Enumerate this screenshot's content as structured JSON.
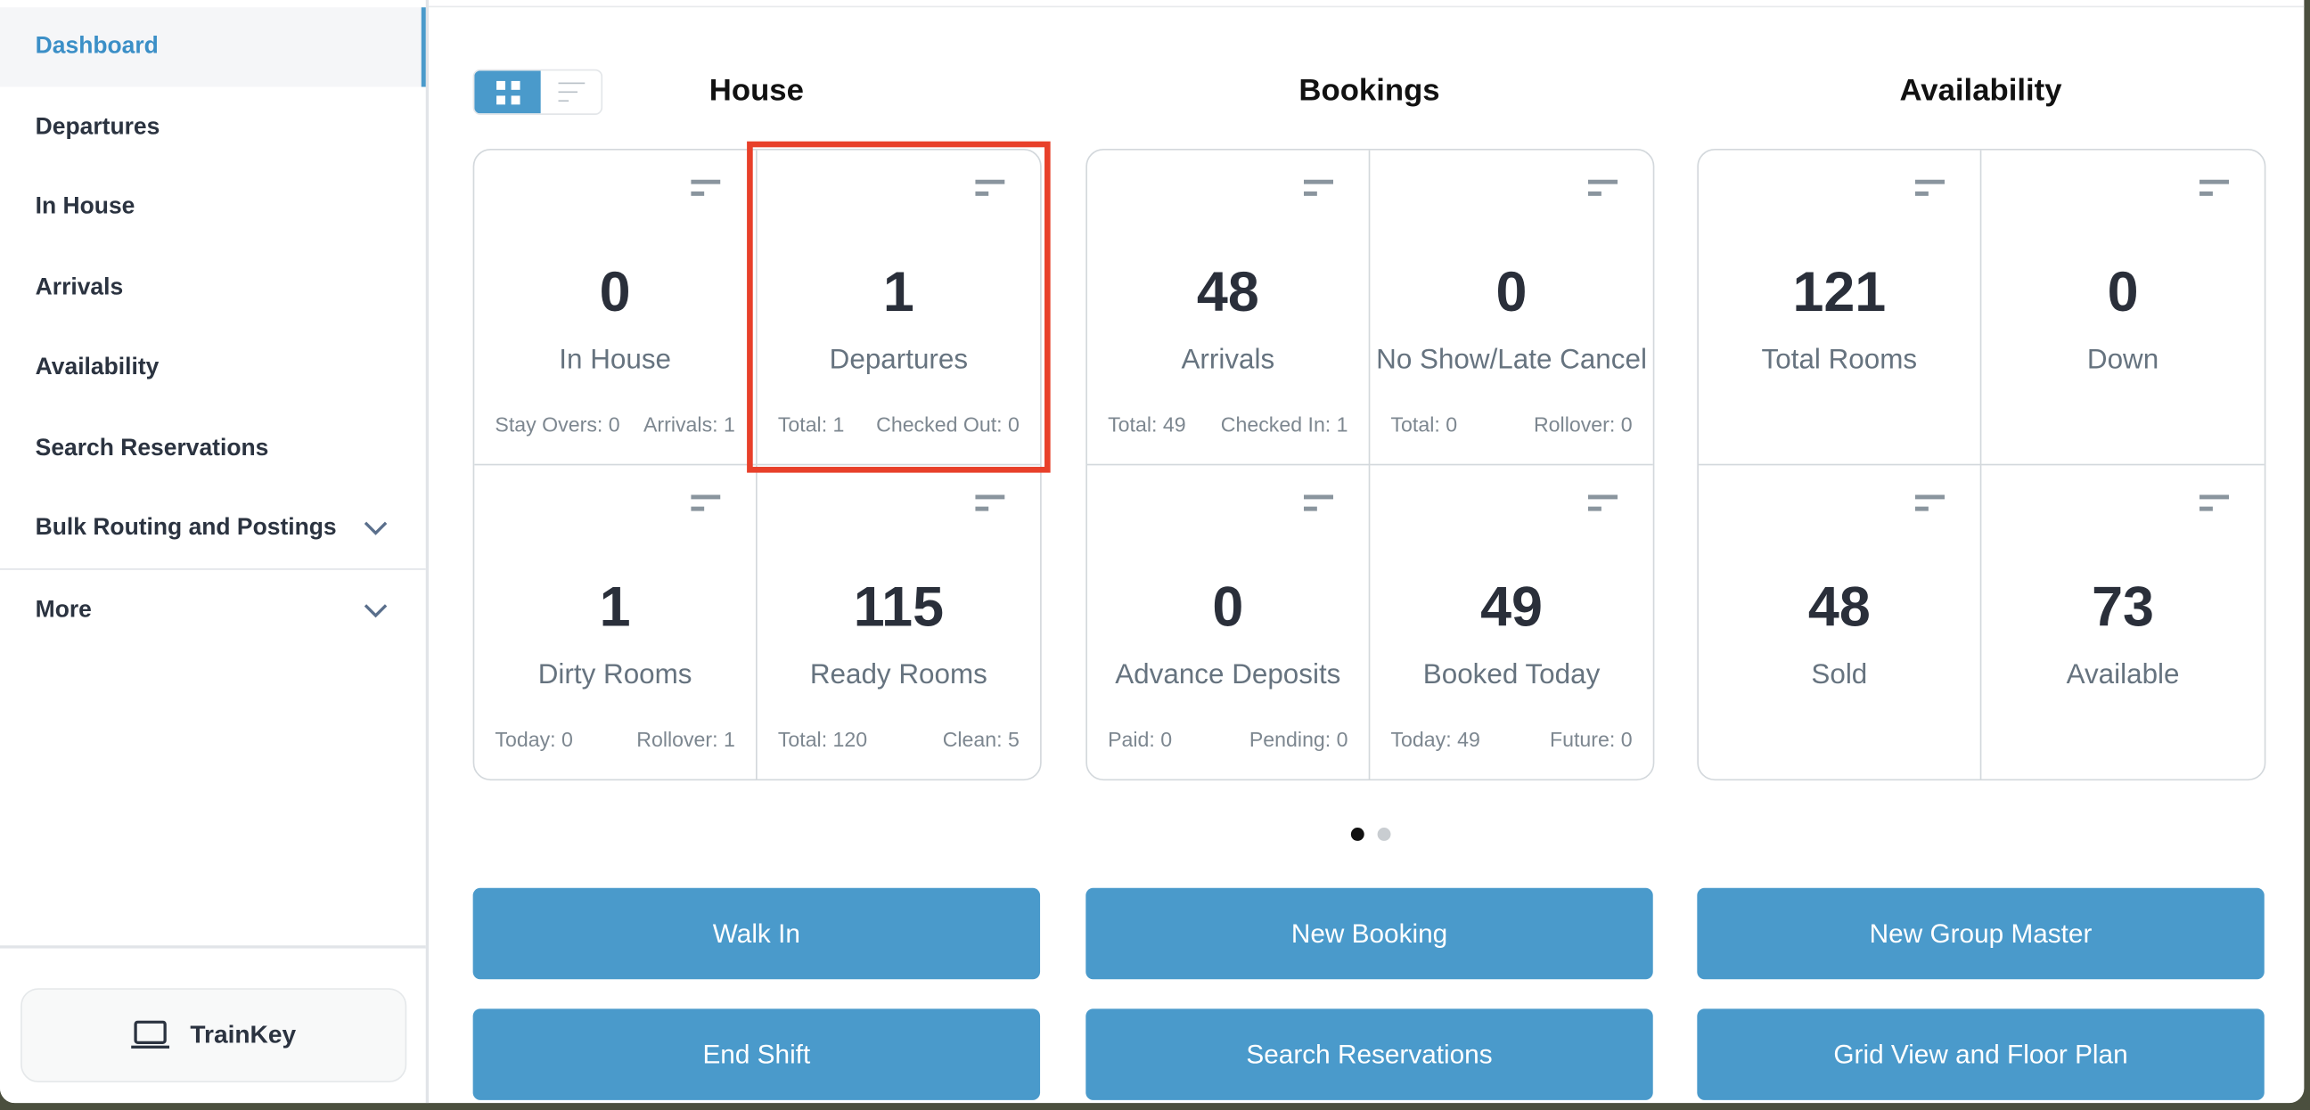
{
  "sidebar": {
    "items": [
      {
        "label": "Dashboard",
        "active": true
      },
      {
        "label": "Departures"
      },
      {
        "label": "In House"
      },
      {
        "label": "Arrivals"
      },
      {
        "label": "Availability"
      },
      {
        "label": "Search Reservations"
      },
      {
        "label": "Bulk Routing and Postings",
        "expandable": true
      },
      {
        "label": "More",
        "expandable": true
      }
    ],
    "trainkey": "TrainKey"
  },
  "view_toggle": {
    "selected": "grid"
  },
  "sections": [
    {
      "title": "House",
      "cells": [
        {
          "value": "0",
          "label": "In House",
          "sub": [
            "Stay Overs: 0",
            "Arrivals: 1"
          ]
        },
        {
          "value": "1",
          "label": "Departures",
          "sub": [
            "Total: 1",
            "Checked Out: 0"
          ],
          "highlighted": true
        },
        {
          "value": "1",
          "label": "Dirty Rooms",
          "sub": [
            "Today: 0",
            "Rollover: 1"
          ]
        },
        {
          "value": "115",
          "label": "Ready Rooms",
          "sub": [
            "Total: 120",
            "Clean: 5"
          ]
        }
      ]
    },
    {
      "title": "Bookings",
      "cells": [
        {
          "value": "48",
          "label": "Arrivals",
          "sub": [
            "Total: 49",
            "Checked In: 1"
          ]
        },
        {
          "value": "0",
          "label": "No Show/Late Cancel",
          "sub": [
            "Total: 0",
            "Rollover: 0"
          ]
        },
        {
          "value": "0",
          "label": "Advance Deposits",
          "sub": [
            "Paid: 0",
            "Pending: 0"
          ]
        },
        {
          "value": "49",
          "label": "Booked Today",
          "sub": [
            "Today: 49",
            "Future: 0"
          ]
        }
      ]
    },
    {
      "title": "Availability",
      "cells": [
        {
          "value": "121",
          "label": "Total Rooms",
          "sub": [
            "",
            ""
          ]
        },
        {
          "value": "0",
          "label": "Down",
          "sub": [
            "",
            ""
          ]
        },
        {
          "value": "48",
          "label": "Sold",
          "sub": [
            "",
            ""
          ]
        },
        {
          "value": "73",
          "label": "Available",
          "sub": [
            "",
            ""
          ]
        }
      ]
    }
  ],
  "pagination": {
    "current": 1,
    "total": 2
  },
  "buttons": [
    "Walk In",
    "New Booking",
    "New Group Master",
    "End Shift",
    "Search Reservations",
    "Grid View and Floor Plan"
  ],
  "colors": {
    "accent": "#4a9acb",
    "highlight": "#e8402a",
    "text": "#2a2f3a"
  }
}
